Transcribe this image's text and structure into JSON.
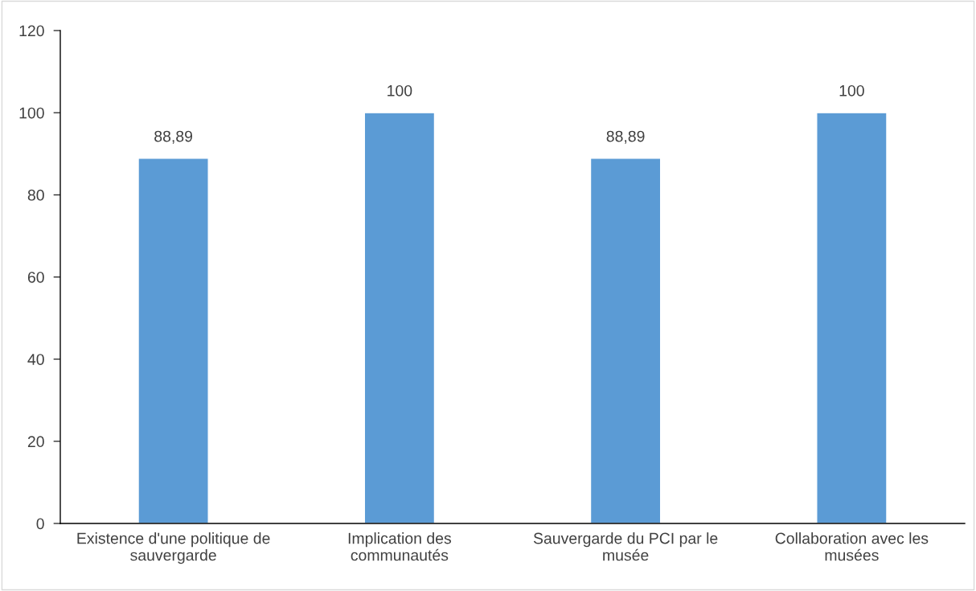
{
  "chart_data": {
    "type": "bar",
    "categories": [
      "Existence d'une politique de\nsauvergarde",
      "Implication des\ncommunautés",
      "Sauvergarde du PCI par le\nmusée",
      "Collaboration avec les\nmusées"
    ],
    "values": [
      88.89,
      100,
      88.89,
      100
    ],
    "value_labels": [
      "88,89",
      "100",
      "88,89",
      "100"
    ],
    "color": "#5b9bd5",
    "ylim": [
      0,
      120
    ],
    "yticks": [
      0,
      20,
      40,
      60,
      80,
      100,
      120
    ],
    "grid": false,
    "legend": false
  }
}
